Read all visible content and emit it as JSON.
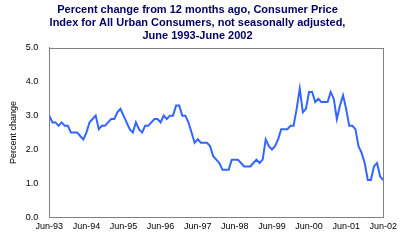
{
  "chart_data": {
    "type": "line",
    "title": "Percent change from 12 months ago, Consumer Price Index for All Urban Consumers, not seasonally adjusted, June 1993-June 2002",
    "y_label": "Percent change",
    "categories": [
      "Jun-93",
      null,
      null,
      null,
      null,
      null,
      null,
      null,
      null,
      null,
      null,
      null,
      "Jun-94",
      null,
      null,
      null,
      null,
      null,
      null,
      null,
      null,
      null,
      null,
      null,
      "Jun-95",
      null,
      null,
      null,
      null,
      null,
      null,
      null,
      null,
      null,
      null,
      null,
      "Jun-96",
      null,
      null,
      null,
      null,
      null,
      null,
      null,
      null,
      null,
      null,
      null,
      "Jun-97",
      null,
      null,
      null,
      null,
      null,
      null,
      null,
      null,
      null,
      null,
      null,
      "Jun-98",
      null,
      null,
      null,
      null,
      null,
      null,
      null,
      null,
      null,
      null,
      null,
      "Jun-99",
      null,
      null,
      null,
      null,
      null,
      null,
      null,
      null,
      null,
      null,
      null,
      "Jun-00",
      null,
      null,
      null,
      null,
      null,
      null,
      null,
      null,
      null,
      null,
      null,
      "Jun-01",
      null,
      null,
      null,
      null,
      null,
      null,
      null,
      null,
      null,
      null,
      null,
      "Jun-02"
    ],
    "values": [
      3.0,
      2.8,
      2.8,
      2.7,
      2.8,
      2.7,
      2.7,
      2.5,
      2.5,
      2.5,
      2.4,
      2.3,
      2.5,
      2.8,
      2.9,
      3.0,
      2.6,
      2.7,
      2.7,
      2.8,
      2.9,
      2.9,
      3.1,
      3.2,
      3.0,
      2.8,
      2.6,
      2.5,
      2.8,
      2.6,
      2.5,
      2.7,
      2.7,
      2.8,
      2.9,
      2.9,
      2.8,
      3.0,
      2.9,
      3.0,
      3.0,
      3.3,
      3.3,
      3.0,
      3.0,
      2.8,
      2.5,
      2.2,
      2.3,
      2.2,
      2.2,
      2.2,
      2.1,
      1.8,
      1.7,
      1.6,
      1.4,
      1.4,
      1.4,
      1.7,
      1.7,
      1.7,
      1.6,
      1.5,
      1.5,
      1.5,
      1.6,
      1.7,
      1.6,
      1.7,
      2.3,
      2.1,
      2.0,
      2.1,
      2.3,
      2.6,
      2.6,
      2.6,
      2.7,
      2.7,
      3.2,
      3.8,
      3.1,
      3.2,
      3.7,
      3.7,
      3.4,
      3.5,
      3.4,
      3.4,
      3.4,
      3.7,
      3.5,
      2.9,
      3.3,
      3.6,
      3.2,
      2.7,
      2.7,
      2.6,
      2.1,
      1.9,
      1.6,
      1.1,
      1.1,
      1.5,
      1.6,
      1.2,
      1.1
    ],
    "color": "#3366ff",
    "ylim": [
      0,
      5
    ],
    "yticks": [
      {
        "value": 0,
        "label": "0.0"
      },
      {
        "value": 1,
        "label": "1.0"
      },
      {
        "value": 2,
        "label": "2.0"
      },
      {
        "value": 3,
        "label": "3.0"
      },
      {
        "value": 4,
        "label": "4.0"
      },
      {
        "value": 5,
        "label": "5.0"
      }
    ],
    "grid": false
  }
}
